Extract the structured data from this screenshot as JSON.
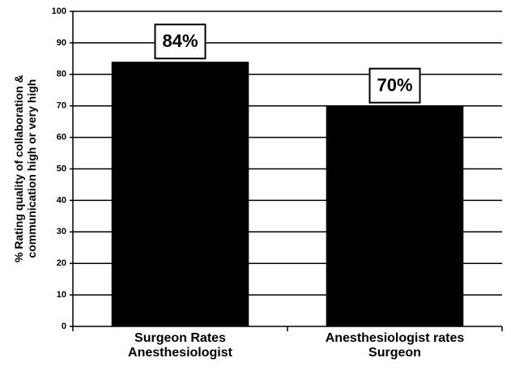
{
  "chart_data": {
    "type": "bar",
    "y_label": "% Rating quality of collaboration &\ncommunication high or very high",
    "categories": [
      "Surgeon Rates\nAnesthesiologist",
      "Anesthesiologist rates\nSurgeon"
    ],
    "values": [
      84,
      70
    ],
    "value_labels": [
      "84%",
      "70%"
    ],
    "color": "#000000",
    "ylim": [
      0,
      100
    ],
    "yticks": [
      0,
      10,
      20,
      30,
      40,
      50,
      60,
      70,
      80,
      90,
      100
    ],
    "grid": true
  }
}
